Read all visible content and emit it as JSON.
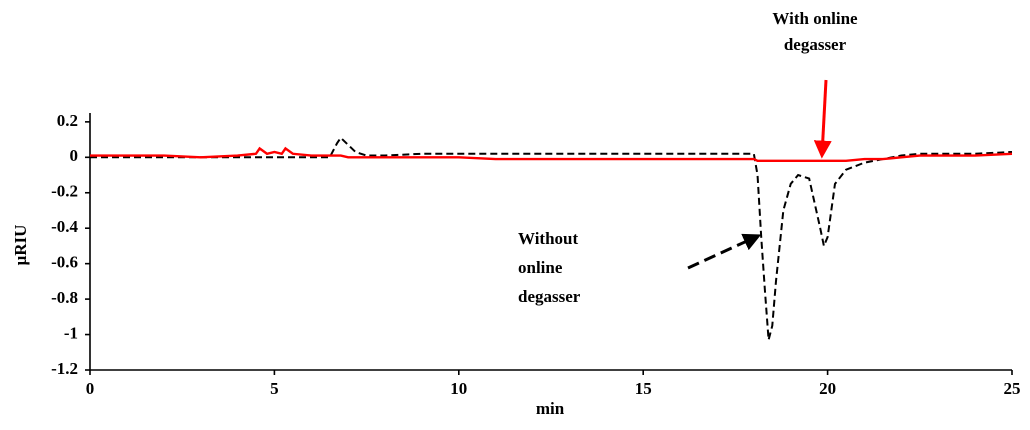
{
  "chart_data": {
    "type": "line",
    "x_label": "min",
    "y_label": "μRIU",
    "x": [
      0,
      1,
      2,
      3,
      4,
      4.5,
      4.6,
      4.8,
      5,
      5.2,
      5.3,
      5.5,
      6,
      6.5,
      6.7,
      6.8,
      7,
      7.2,
      7.5,
      8,
      9,
      10,
      11,
      12,
      13,
      14,
      15,
      16,
      17,
      17.5,
      18,
      18.1,
      18.2,
      18.3,
      18.4,
      18.5,
      18.6,
      18.8,
      19,
      19.2,
      19.5,
      19.8,
      19.9,
      20,
      20.2,
      20.5,
      21,
      21.5,
      22,
      22.5,
      23,
      24,
      25
    ],
    "series": [
      {
        "name": "Without online degasser",
        "color": "#000000",
        "dashed": true,
        "values": [
          0,
          0,
          0,
          0,
          0,
          0,
          0,
          0,
          0,
          0,
          0,
          0,
          0,
          0,
          0.08,
          0.11,
          0.07,
          0.03,
          0.01,
          0.01,
          0.02,
          0.02,
          0.02,
          0.02,
          0.02,
          0.02,
          0.02,
          0.02,
          0.02,
          0.02,
          0.02,
          -0.1,
          -0.45,
          -0.75,
          -1.03,
          -0.95,
          -0.7,
          -0.3,
          -0.15,
          -0.1,
          -0.12,
          -0.4,
          -0.5,
          -0.45,
          -0.15,
          -0.07,
          -0.03,
          -0.01,
          0.01,
          0.02,
          0.02,
          0.02,
          0.03
        ]
      },
      {
        "name": "With online degasser",
        "color": "#ff0000",
        "dashed": false,
        "values": [
          0.01,
          0.01,
          0.01,
          0,
          0.01,
          0.02,
          0.05,
          0.02,
          0.03,
          0.02,
          0.05,
          0.02,
          0.01,
          0.01,
          0.01,
          0.01,
          0,
          0,
          0,
          0,
          0,
          0,
          -0.01,
          -0.01,
          -0.01,
          -0.01,
          -0.01,
          -0.01,
          -0.01,
          -0.01,
          -0.01,
          -0.02,
          -0.02,
          -0.02,
          -0.02,
          -0.02,
          -0.02,
          -0.02,
          -0.02,
          -0.02,
          -0.02,
          -0.02,
          -0.02,
          -0.02,
          -0.02,
          -0.02,
          -0.01,
          -0.01,
          0,
          0.01,
          0.01,
          0.01,
          0.02
        ]
      }
    ],
    "annotations": [
      {
        "lines": [
          "With online",
          "degasser"
        ]
      },
      {
        "lines": [
          "Without",
          "online",
          "degasser"
        ]
      }
    ],
    "xlim": [
      0,
      25
    ],
    "ylim": [
      -1.2,
      0.25
    ],
    "xticks": [
      0,
      5,
      10,
      15,
      20,
      25
    ],
    "yticks": [
      0.2,
      0,
      -0.2,
      -0.4,
      -0.6,
      -0.8,
      -1,
      -1.2
    ]
  }
}
